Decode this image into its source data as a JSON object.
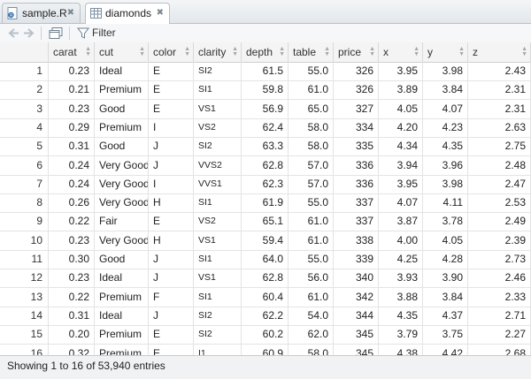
{
  "tabs": [
    {
      "label": "sample.R",
      "icon": "r-script-icon",
      "active": false
    },
    {
      "label": "diamonds",
      "icon": "table-icon",
      "active": true
    }
  ],
  "toolbar": {
    "filter_label": "Filter"
  },
  "table": {
    "columns": [
      "carat",
      "cut",
      "color",
      "clarity",
      "depth",
      "table",
      "price",
      "x",
      "y",
      "z"
    ],
    "rows": [
      [
        "1",
        "0.23",
        "Ideal",
        "E",
        "SI2",
        "61.5",
        "55.0",
        "326",
        "3.95",
        "3.98",
        "2.43"
      ],
      [
        "2",
        "0.21",
        "Premium",
        "E",
        "SI1",
        "59.8",
        "61.0",
        "326",
        "3.89",
        "3.84",
        "2.31"
      ],
      [
        "3",
        "0.23",
        "Good",
        "E",
        "VS1",
        "56.9",
        "65.0",
        "327",
        "4.05",
        "4.07",
        "2.31"
      ],
      [
        "4",
        "0.29",
        "Premium",
        "I",
        "VS2",
        "62.4",
        "58.0",
        "334",
        "4.20",
        "4.23",
        "2.63"
      ],
      [
        "5",
        "0.31",
        "Good",
        "J",
        "SI2",
        "63.3",
        "58.0",
        "335",
        "4.34",
        "4.35",
        "2.75"
      ],
      [
        "6",
        "0.24",
        "Very Good",
        "J",
        "VVS2",
        "62.8",
        "57.0",
        "336",
        "3.94",
        "3.96",
        "2.48"
      ],
      [
        "7",
        "0.24",
        "Very Good",
        "I",
        "VVS1",
        "62.3",
        "57.0",
        "336",
        "3.95",
        "3.98",
        "2.47"
      ],
      [
        "8",
        "0.26",
        "Very Good",
        "H",
        "SI1",
        "61.9",
        "55.0",
        "337",
        "4.07",
        "4.11",
        "2.53"
      ],
      [
        "9",
        "0.22",
        "Fair",
        "E",
        "VS2",
        "65.1",
        "61.0",
        "337",
        "3.87",
        "3.78",
        "2.49"
      ],
      [
        "10",
        "0.23",
        "Very Good",
        "H",
        "VS1",
        "59.4",
        "61.0",
        "338",
        "4.00",
        "4.05",
        "2.39"
      ],
      [
        "11",
        "0.30",
        "Good",
        "J",
        "SI1",
        "64.0",
        "55.0",
        "339",
        "4.25",
        "4.28",
        "2.73"
      ],
      [
        "12",
        "0.23",
        "Ideal",
        "J",
        "VS1",
        "62.8",
        "56.0",
        "340",
        "3.93",
        "3.90",
        "2.46"
      ],
      [
        "13",
        "0.22",
        "Premium",
        "F",
        "SI1",
        "60.4",
        "61.0",
        "342",
        "3.88",
        "3.84",
        "2.33"
      ],
      [
        "14",
        "0.31",
        "Ideal",
        "J",
        "SI2",
        "62.2",
        "54.0",
        "344",
        "4.35",
        "4.37",
        "2.71"
      ],
      [
        "15",
        "0.20",
        "Premium",
        "E",
        "SI2",
        "60.2",
        "62.0",
        "345",
        "3.79",
        "3.75",
        "2.27"
      ],
      [
        "16",
        "0.32",
        "Premium",
        "E",
        "I1",
        "60.9",
        "58.0",
        "345",
        "4.38",
        "4.42",
        "2.68"
      ]
    ]
  },
  "status": {
    "text": "Showing 1 to 16 of 53,940 entries"
  }
}
